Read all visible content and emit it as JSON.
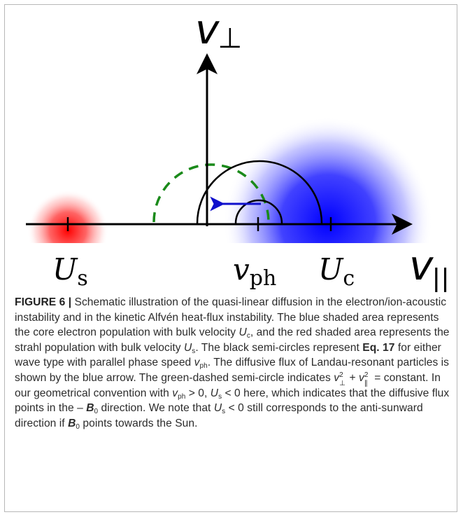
{
  "figure": {
    "axis_labels": {
      "v_perp": "v",
      "v_perp_sub": "⊥",
      "v_par": "v",
      "v_par_sub": "||",
      "U_s": "U",
      "U_s_sub": "s",
      "v_ph": "v",
      "v_ph_sub": "ph",
      "U_c": "U",
      "U_c_sub": "c"
    },
    "colors": {
      "core": "#0000ff",
      "strahl": "#ff0000",
      "dashed": "#1a8a1a",
      "arrow": "#1010cc",
      "axes": "#000000"
    }
  },
  "caption": {
    "label": "FIGURE 6 |",
    "s1": " Schematic illustration of the quasi-linear diffusion in the electron/ion-acoustic instability and in the kinetic Alfvén heat-flux instability. The blue shaded area represents the core electron population with bulk velocity ",
    "Uc": "U",
    "Uc_sub": "c",
    "s2": ", and the red shaded area represents the strahl population with bulk velocity ",
    "Us": "U",
    "Us_sub": "s",
    "s3": ". The black semi-circles represent ",
    "eq": "Eq. 17",
    "s4": " for either wave type with parallel phase speed ",
    "vph": "v",
    "vph_sub": "ph",
    "s5": ". The diffusive flux of Landau-resonant particles is shown by the blue arrow. The green-dashed semi-circle indicates ",
    "vperp": "v",
    "sq": "2",
    "perp": "⊥",
    "plus": " + ",
    "vpar": "v",
    "par": "∥",
    "s6": " = constant. In our geometrical convention with ",
    "vph2": "v",
    "vph2_sub": "ph",
    "s7": " > 0, ",
    "Us2": "U",
    "Us2_sub": "s",
    "s8": " < 0 here, which indicates that the diffusive flux points in the – ",
    "B0": "B",
    "B0_sub": "0",
    "s9": " direction. We note that ",
    "Us3": "U",
    "Us3_sub": "s",
    "s10": " < 0 still corresponds to the anti-sunward direction if ",
    "B0b": "B",
    "B0b_sub": "0",
    "s11": " points towards the Sun."
  }
}
